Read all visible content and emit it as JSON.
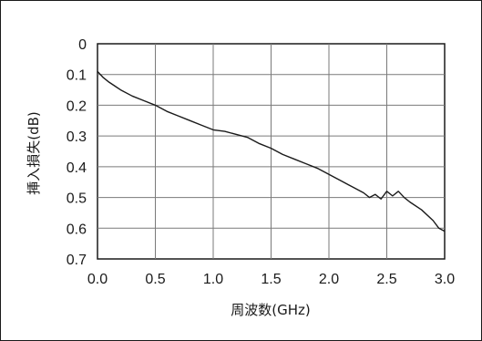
{
  "chart_data": {
    "type": "line",
    "title": "",
    "xlabel": "周波数(GHz)",
    "ylabel": "挿入損失(dB)",
    "xlim": [
      0.0,
      3.0
    ],
    "ylim": [
      0,
      0.7
    ],
    "y_inverted": true,
    "grid": true,
    "x_ticks": [
      "0.0",
      "0.5",
      "1.0",
      "1.5",
      "2.0",
      "2.5",
      "3.0"
    ],
    "y_ticks": [
      "0",
      "0.1",
      "0.2",
      "0.3",
      "0.4",
      "0.5",
      "0.6",
      "0.7"
    ],
    "series": [
      {
        "color": "#1a1a1a",
        "x": [
          0.0,
          0.05,
          0.1,
          0.2,
          0.3,
          0.4,
          0.5,
          0.6,
          0.7,
          0.8,
          0.9,
          1.0,
          1.1,
          1.2,
          1.3,
          1.4,
          1.5,
          1.6,
          1.7,
          1.8,
          1.9,
          2.0,
          2.1,
          2.2,
          2.3,
          2.35,
          2.4,
          2.45,
          2.5,
          2.55,
          2.6,
          2.65,
          2.7,
          2.8,
          2.9,
          2.95,
          3.0
        ],
        "y": [
          0.09,
          0.11,
          0.125,
          0.15,
          0.17,
          0.185,
          0.2,
          0.22,
          0.235,
          0.25,
          0.265,
          0.28,
          0.285,
          0.295,
          0.305,
          0.325,
          0.34,
          0.36,
          0.375,
          0.39,
          0.405,
          0.425,
          0.445,
          0.465,
          0.485,
          0.5,
          0.49,
          0.505,
          0.48,
          0.495,
          0.48,
          0.5,
          0.515,
          0.54,
          0.575,
          0.6,
          0.61
        ]
      }
    ]
  }
}
